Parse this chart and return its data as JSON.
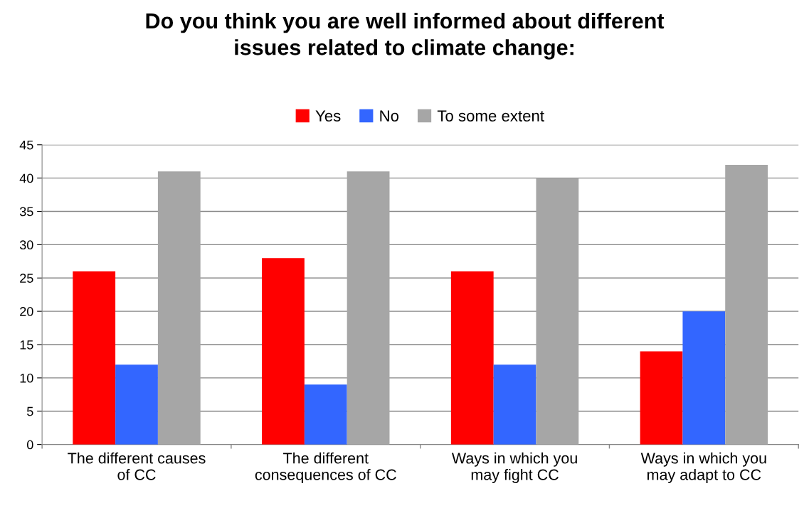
{
  "chart_data": {
    "type": "bar",
    "title": "Do you think you are well informed about different\nissues related to climate change:",
    "categories": [
      "The different causes\nof CC",
      "The different\nconsequences of CC",
      "Ways in which you\nmay fight CC",
      "Ways in which you\nmay adapt to CC"
    ],
    "series": [
      {
        "name": "Yes",
        "color": "#ff0000",
        "values": [
          26,
          28,
          26,
          14
        ]
      },
      {
        "name": "No",
        "color": "#3366ff",
        "values": [
          12,
          9,
          12,
          20
        ]
      },
      {
        "name": "To some extent",
        "color": "#a6a6a6",
        "values": [
          41,
          41,
          40,
          42
        ]
      }
    ],
    "ylim": [
      0,
      45
    ],
    "yticks": [
      0,
      5,
      10,
      15,
      20,
      25,
      30,
      35,
      40,
      45
    ],
    "grid": "y",
    "legend": "top"
  }
}
